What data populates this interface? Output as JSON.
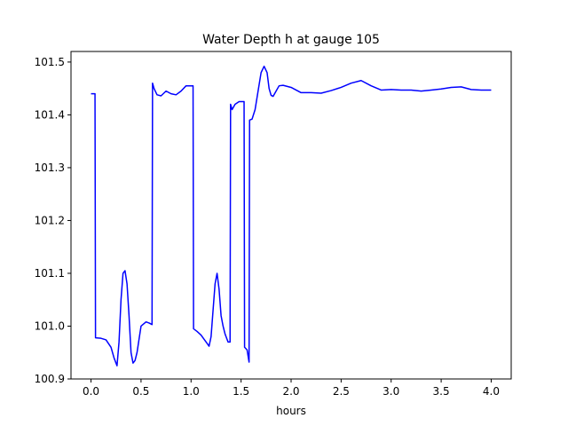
{
  "chart_data": {
    "type": "line",
    "title": "Water Depth h at gauge 105",
    "xlabel": "hours",
    "ylabel": "",
    "xlim": [
      -0.2,
      4.2
    ],
    "ylim": [
      100.9,
      101.52
    ],
    "grid": false,
    "xticks": [
      0.0,
      0.5,
      1.0,
      1.5,
      2.0,
      2.5,
      3.0,
      3.5,
      4.0
    ],
    "xtick_labels": [
      "0.0",
      "0.5",
      "1.0",
      "1.5",
      "2.0",
      "2.5",
      "3.0",
      "3.5",
      "4.0"
    ],
    "yticks": [
      100.9,
      101.0,
      101.1,
      101.2,
      101.3,
      101.4,
      101.5
    ],
    "ytick_labels": [
      "100.9",
      "101.0",
      "101.1",
      "101.2",
      "101.3",
      "101.4",
      "101.5"
    ],
    "series": [
      {
        "color": "#0000ff",
        "x": [
          0.0,
          0.04,
          0.045,
          0.1,
          0.15,
          0.2,
          0.23,
          0.26,
          0.28,
          0.3,
          0.32,
          0.34,
          0.36,
          0.38,
          0.4,
          0.42,
          0.44,
          0.46,
          0.48,
          0.5,
          0.55,
          0.58,
          0.61,
          0.615,
          0.63,
          0.66,
          0.7,
          0.75,
          0.8,
          0.85,
          0.9,
          0.95,
          1.0,
          1.02,
          1.025,
          1.06,
          1.1,
          1.15,
          1.18,
          1.2,
          1.22,
          1.24,
          1.26,
          1.28,
          1.3,
          1.32,
          1.34,
          1.37,
          1.39,
          1.395,
          1.41,
          1.44,
          1.48,
          1.51,
          1.53,
          1.535,
          1.56,
          1.58,
          1.585,
          1.61,
          1.64,
          1.67,
          1.7,
          1.73,
          1.76,
          1.78,
          1.8,
          1.82,
          1.85,
          1.88,
          1.92,
          2.0,
          2.1,
          2.2,
          2.3,
          2.4,
          2.5,
          2.6,
          2.7,
          2.8,
          2.9,
          3.0,
          3.1,
          3.2,
          3.3,
          3.4,
          3.5,
          3.6,
          3.7,
          3.8,
          3.9,
          4.0
        ],
        "y": [
          101.44,
          101.44,
          100.978,
          100.977,
          100.974,
          100.96,
          100.94,
          100.925,
          100.97,
          101.05,
          101.1,
          101.105,
          101.08,
          101.02,
          100.95,
          100.93,
          100.935,
          100.95,
          100.975,
          101.0,
          101.008,
          101.006,
          101.003,
          101.46,
          101.45,
          101.438,
          101.436,
          101.445,
          101.44,
          101.438,
          101.445,
          101.455,
          101.455,
          101.455,
          100.995,
          100.99,
          100.983,
          100.97,
          100.962,
          100.98,
          101.03,
          101.08,
          101.1,
          101.07,
          101.02,
          101.0,
          100.985,
          100.97,
          100.97,
          101.42,
          101.41,
          101.42,
          101.425,
          101.425,
          101.425,
          100.96,
          100.955,
          100.932,
          101.39,
          101.392,
          101.41,
          101.445,
          101.48,
          101.492,
          101.48,
          101.45,
          101.437,
          101.435,
          101.445,
          101.455,
          101.456,
          101.452,
          101.442,
          101.442,
          101.441,
          101.446,
          101.452,
          101.46,
          101.465,
          101.455,
          101.447,
          101.448,
          101.447,
          101.447,
          101.445,
          101.447,
          101.449,
          101.452,
          101.453,
          101.448,
          101.447,
          101.447
        ]
      }
    ]
  }
}
